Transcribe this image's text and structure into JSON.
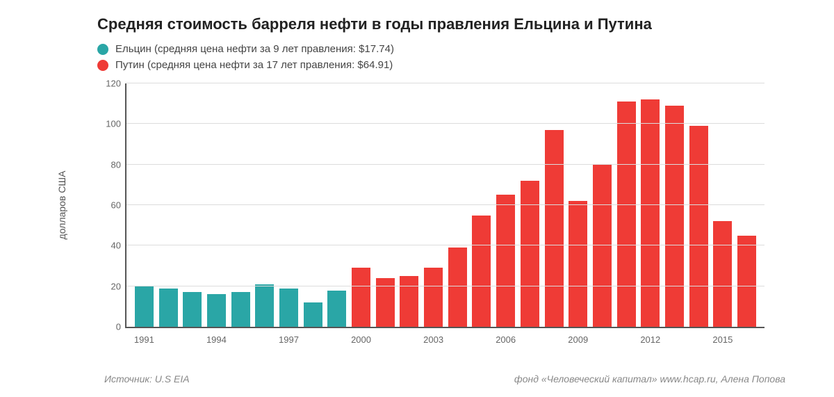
{
  "chart": {
    "type": "bar",
    "title": "Средняя стоимость барреля нефти в годы правления Ельцина и Путина",
    "title_fontsize": 22,
    "title_color": "#222222",
    "background_color": "#ffffff",
    "legend": [
      {
        "label": "Ельцин (средняя цена нефти за 9 лет правления: $17.74)",
        "color": "#2aa6a6"
      },
      {
        "label": "Путин (средняя цена нефти за 17 лет правления: $64.91)",
        "color": "#ef3b36"
      }
    ],
    "legend_fontsize": 15,
    "ylabel": "долларов США",
    "ylabel_fontsize": 14,
    "ylim": [
      0,
      120
    ],
    "ytick_step": 20,
    "yticks": [
      0,
      20,
      40,
      60,
      80,
      100,
      120
    ],
    "axis_color": "#555555",
    "grid_color": "#dcdcdc",
    "tick_label_color": "#666666",
    "tick_label_fontsize": 13,
    "bar_width": 0.78,
    "xticks": [
      1991,
      1994,
      1997,
      2000,
      2003,
      2006,
      2009,
      2012,
      2015
    ],
    "bars": [
      {
        "year": 1991,
        "value": 20,
        "series": 0
      },
      {
        "year": 1992,
        "value": 19,
        "series": 0
      },
      {
        "year": 1993,
        "value": 17,
        "series": 0
      },
      {
        "year": 1994,
        "value": 16,
        "series": 0
      },
      {
        "year": 1995,
        "value": 17,
        "series": 0
      },
      {
        "year": 1996,
        "value": 21,
        "series": 0
      },
      {
        "year": 1997,
        "value": 19,
        "series": 0
      },
      {
        "year": 1998,
        "value": 12,
        "series": 0
      },
      {
        "year": 1999,
        "value": 18,
        "series": 0
      },
      {
        "year": 2000,
        "value": 29,
        "series": 1
      },
      {
        "year": 2001,
        "value": 24,
        "series": 1
      },
      {
        "year": 2002,
        "value": 25,
        "series": 1
      },
      {
        "year": 2003,
        "value": 29,
        "series": 1
      },
      {
        "year": 2004,
        "value": 39,
        "series": 1
      },
      {
        "year": 2005,
        "value": 55,
        "series": 1
      },
      {
        "year": 2006,
        "value": 65,
        "series": 1
      },
      {
        "year": 2007,
        "value": 72,
        "series": 1
      },
      {
        "year": 2008,
        "value": 97,
        "series": 1
      },
      {
        "year": 2009,
        "value": 62,
        "series": 1
      },
      {
        "year": 2010,
        "value": 80,
        "series": 1
      },
      {
        "year": 2011,
        "value": 111,
        "series": 1
      },
      {
        "year": 2012,
        "value": 112,
        "series": 1
      },
      {
        "year": 2013,
        "value": 109,
        "series": 1
      },
      {
        "year": 2014,
        "value": 99,
        "series": 1
      },
      {
        "year": 2015,
        "value": 52,
        "series": 1
      },
      {
        "year": 2016,
        "value": 45,
        "series": 1
      }
    ],
    "source_left": "Источник: U.S EIA",
    "source_right": "фонд «Человеческий капитал» www.hcap.ru, Алена Попова",
    "footer_fontsize": 14,
    "footer_color": "#888888"
  }
}
